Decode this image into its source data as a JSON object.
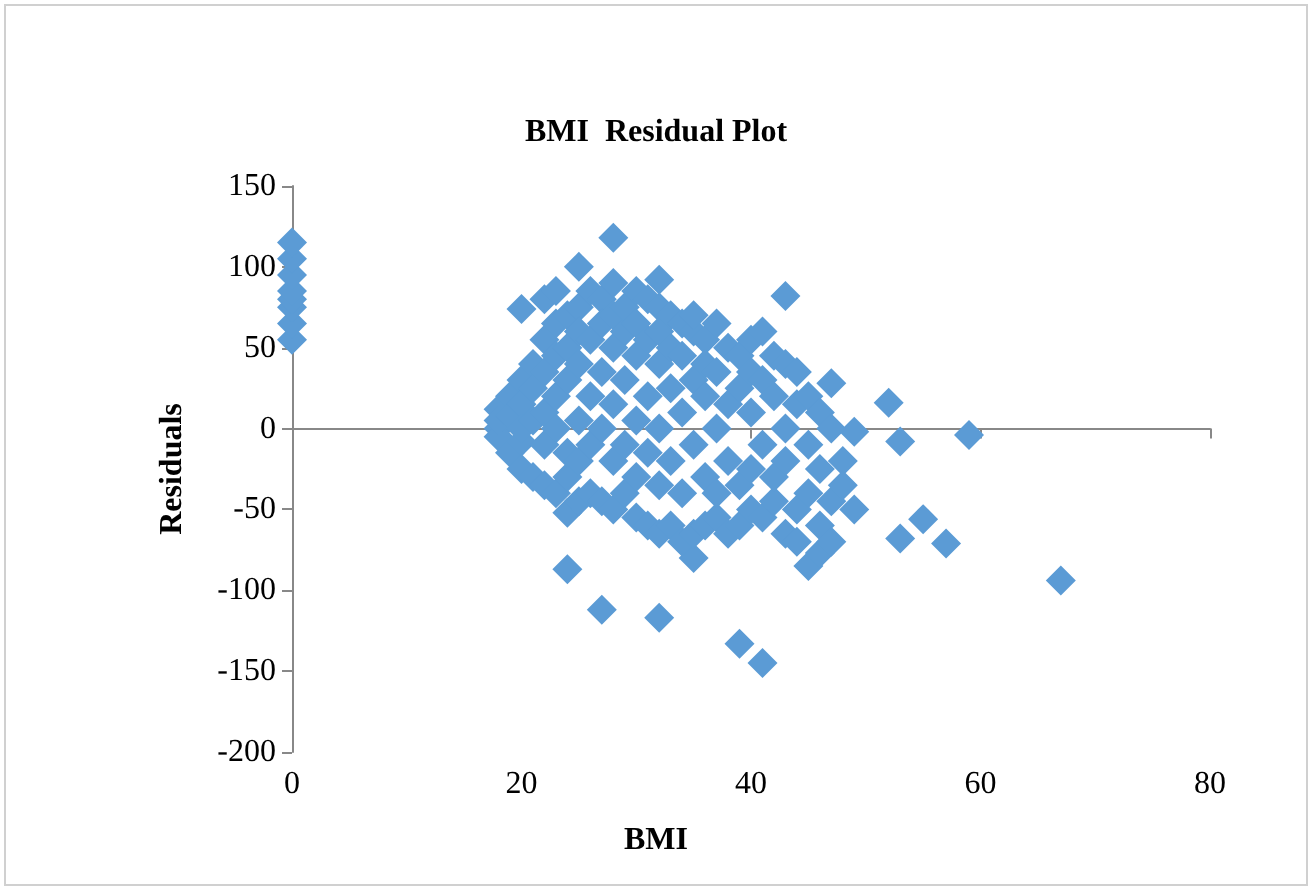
{
  "chart_data": {
    "type": "scatter",
    "title": "BMI  Residual Plot",
    "xlabel": "BMI",
    "ylabel": "Residuals",
    "xlim": [
      0,
      80
    ],
    "xticks": [
      0,
      20,
      40,
      60,
      80
    ],
    "ylim": [
      -200,
      150
    ],
    "yticks": [
      -200,
      -150,
      -100,
      -50,
      0,
      50,
      100,
      150
    ],
    "marker": "diamond",
    "series": [
      {
        "color": "#5b9bd5",
        "x": [
          0,
          0,
          0,
          0,
          0,
          0,
          0,
          0,
          28,
          25,
          32,
          43,
          20,
          47,
          52,
          53,
          59,
          49,
          49,
          55,
          53,
          57,
          67,
          24,
          24,
          27,
          32,
          39,
          41,
          35,
          45,
          46,
          18,
          18,
          18,
          18,
          19,
          19,
          19,
          20,
          20,
          20,
          20,
          20,
          21,
          21,
          21,
          21,
          22,
          22,
          22,
          22,
          22,
          22,
          23,
          23,
          23,
          23,
          23,
          23,
          24,
          24,
          24,
          24,
          24,
          25,
          25,
          25,
          25,
          25,
          25,
          26,
          26,
          26,
          26,
          26,
          27,
          27,
          27,
          27,
          27,
          28,
          28,
          28,
          28,
          28,
          28,
          29,
          29,
          29,
          29,
          29,
          30,
          30,
          30,
          30,
          30,
          30,
          31,
          31,
          31,
          31,
          31,
          32,
          32,
          32,
          32,
          32,
          32,
          33,
          33,
          33,
          33,
          33,
          34,
          34,
          34,
          34,
          34,
          35,
          35,
          35,
          35,
          35,
          36,
          36,
          36,
          36,
          36,
          37,
          37,
          37,
          37,
          37,
          38,
          38,
          38,
          38,
          39,
          39,
          39,
          39,
          40,
          40,
          40,
          40,
          40,
          41,
          41,
          41,
          41,
          42,
          42,
          42,
          42,
          43,
          43,
          43,
          43,
          44,
          44,
          44,
          44,
          45,
          45,
          45,
          46,
          46,
          46,
          47,
          47,
          47,
          48,
          48
        ],
        "values": [
          55,
          65,
          75,
          80,
          85,
          95,
          105,
          115,
          118,
          100,
          92,
          82,
          74,
          28,
          16,
          -8,
          -4,
          -2,
          -50,
          -56,
          -68,
          -71,
          -94,
          -52,
          -87,
          -112,
          -117,
          -133,
          -145,
          -80,
          -85,
          -77,
          12,
          0,
          -5,
          5,
          20,
          -15,
          8,
          30,
          -25,
          15,
          -8,
          0,
          40,
          -30,
          25,
          5,
          55,
          -35,
          -10,
          10,
          35,
          80,
          65,
          -40,
          20,
          0,
          45,
          85,
          70,
          -30,
          30,
          -15,
          50,
          75,
          -45,
          40,
          5,
          -20,
          60,
          85,
          -40,
          55,
          20,
          -10,
          80,
          -45,
          35,
          0,
          65,
          70,
          -50,
          50,
          -20,
          15,
          90,
          60,
          -40,
          30,
          -10,
          75,
          85,
          -55,
          45,
          5,
          -30,
          65,
          80,
          -60,
          55,
          20,
          -15,
          75,
          -65,
          40,
          0,
          -35,
          60,
          70,
          -60,
          25,
          -20,
          50,
          65,
          -70,
          45,
          10,
          -40,
          60,
          -65,
          30,
          -10,
          70,
          55,
          -60,
          20,
          -30,
          40,
          65,
          -55,
          35,
          0,
          -40,
          50,
          -65,
          15,
          -20,
          45,
          -60,
          25,
          -35,
          55,
          -50,
          10,
          -25,
          35,
          60,
          -55,
          -10,
          30,
          45,
          -45,
          20,
          -30,
          40,
          -65,
          0,
          -20,
          35,
          -50,
          15,
          -70,
          20,
          -40,
          -10,
          10,
          -60,
          -25,
          0,
          -45,
          -70,
          -20,
          -35
        ]
      }
    ]
  }
}
